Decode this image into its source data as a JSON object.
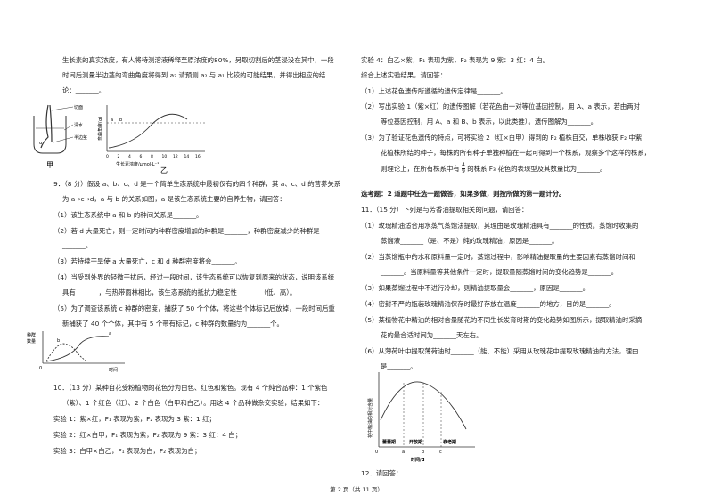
{
  "left": {
    "p_intro_1": "生长素的真实浓度，有人将待测溶液稀释至原浓度的80%，另取切割后的茎浸没在其中，一段",
    "p_intro_2": "时间后测量半边茎的弯曲角度将得到 a₂ 请预测 a₂ 与 a₁ 比较的可能结果，并得出相应的结",
    "p_intro_3": "论：_______。",
    "fig_a": {
      "label_cut": "切面",
      "label_water": "清水",
      "label_stem": "半边茎",
      "label_alpha": "α",
      "ylabel": "弯曲角度(α)",
      "xlabel": "生长素浓度/μmol·L⁻¹",
      "xticks": [
        "0",
        "2",
        "4",
        "6",
        "8",
        "10",
        "12",
        "14",
        "16"
      ],
      "caption_a": "甲",
      "caption_b": "乙",
      "label_a1": "a",
      "label_b1": "b"
    },
    "q9": {
      "header": "9．（8 分）假设 a、b、c、d 是一个简单生态系统中最初仅有的四个种群，其 a、c、d 的营养关系",
      "l2": "为 a→c→d，a 与 b 的关系如图，a 是该生态系统主要的自养生物，请回答：",
      "s1": "（1）该生态系统中 a 和 b 的种间关系是_______。",
      "s2a": "（2）若 d 大量死亡，则一定时间内种群密度增加的种群是_______，种群密度减少的种群是",
      "s2b": "_______。",
      "s3": "（3）若持续干旱使 a 大量死亡，c 和 d 种群密度将会_______。",
      "s4a": "（4）当受到外界的轻微干扰后，经过一段时间，该生态系统可以恢复到原来的状态，说明该系统",
      "s4b": "具有_______，与热带雨林相比，该生态系统的抵抗力稳定性_______（低、高）。",
      "s5a": "（5）为了调查该系统 c 种群的密度，捕获了 50 个个体，将这些个体标记后放掉，一段时间后重",
      "s5b": "新捕获了 40 个个体，其中有 5 个带有标记，c 种群的数量约为_______个。",
      "graph": {
        "ylabel_1": "种群",
        "ylabel_2": "数量",
        "xlabel": "时间",
        "origin": "0",
        "curve_a": "a",
        "curve_b": "b"
      }
    },
    "q10": {
      "header": "10．（13 分）某种自花受粉植物的花色分为白色、红色和紫色。现有 4 个纯合品种：1 个紫色",
      "l2": "（紫）、1 个红色（红）、2 个白色（白甲和白乙）。用这 4 个品种做杂交实验，结果如下：",
      "e1": "实验 1：紫×红，F₁ 表现为紫，F₂ 表现为 3 紫：1 红；",
      "e2": "实验 2：红×白甲，F₁ 表现为紫，F₂ 表现为 9 紫：3 红：4 白；",
      "e3": "实验 3：白甲×白乙，F₁ 表现为白，F₂ 表现为白；"
    }
  },
  "right": {
    "e4": "实验 4：白乙×紫，F₁ 表现为紫，F₂ 表现为 9 紫：3 红：4 白。",
    "intro": "综合上述实验结果，请回答：",
    "r1": "（1）上述花色遗传所遵循的遗传定律是_______。",
    "r2a": "（2）写出实验 1（紫×红）的遗传图解（若花色由一对等位基因控制，用 A、a 表示，若由两对",
    "r2b": "等位基因控制，用 A、a 和 B、b 表示，以此类推）。遗传图解为_______。",
    "r3a": "（3）为了验证花色遗传的特点，可将实验 2（红×白甲）得到的 F₂ 植株自交，单株收获 F₂ 中紫",
    "r3b": "花植株所结的种子，每株的所有种子单独种植在一起可得到一个株系，观察多个这样的株系，",
    "r3c_pre": "则理论上，在所有株系中有",
    "r3c_num": "4",
    "r3c_den": "9",
    "r3c_post": "的株系 F₃ 花色的表现型及其数量比为_______。",
    "elective": "选考题：2 道题中任选一题做答，如果多做，则按所做的第一题计分。",
    "q11": "11．（15 分）下列是与芳香油提取相关的问题，请回答：",
    "a1a": "（1）玫瑰精油适合用水蒸气蒸馏法提取，其理由是玫瑰精油具有_______的性质。蒸馏时收集的",
    "a1b": "蒸馏液_______（是、不是）纯的玫瑰精油，原因是_______。",
    "a2a": "（2）当蒸馏瓶中的水和原料量一定时，蒸馏过程中，影响精油提取量的主要因素有蒸馏时间和",
    "a2b": "_______。当原料量等其他条件一定时，提取量随蒸馏时间的变化趋势是_______。",
    "a3": "（3）如果蒸馏过程中不进行冷却，则精油提取量会_______，原因是_______。",
    "a4": "（4）密封不严的瓶装玫瑰精油保存时最好存放在温度_______的地方，目的是_______。",
    "a5a": "（5）某植物花中精油的相对含量随花的不同生长发育时期的变化趋势如图所示，提取精油时采摘",
    "a5b": "花的最合适时间为_______天左右。",
    "a6a": "（6）从薄荷叶中提取薄荷油时_______（能、不能）采用从玫瑰花中提取玫瑰精油的方法，理由",
    "a6b": "是_______。",
    "graph2": {
      "ylabel": "花中精油的相对含量",
      "xlabel": "时间/d",
      "stage1": "蕾蕾期",
      "stage2": "开放期",
      "stage3": "衰老期",
      "origin": "0",
      "tick_a": "a",
      "tick_b": "b",
      "tick_c": "c"
    },
    "q12": "12．请回答："
  },
  "footer": "第 2 页（共 11 页）"
}
